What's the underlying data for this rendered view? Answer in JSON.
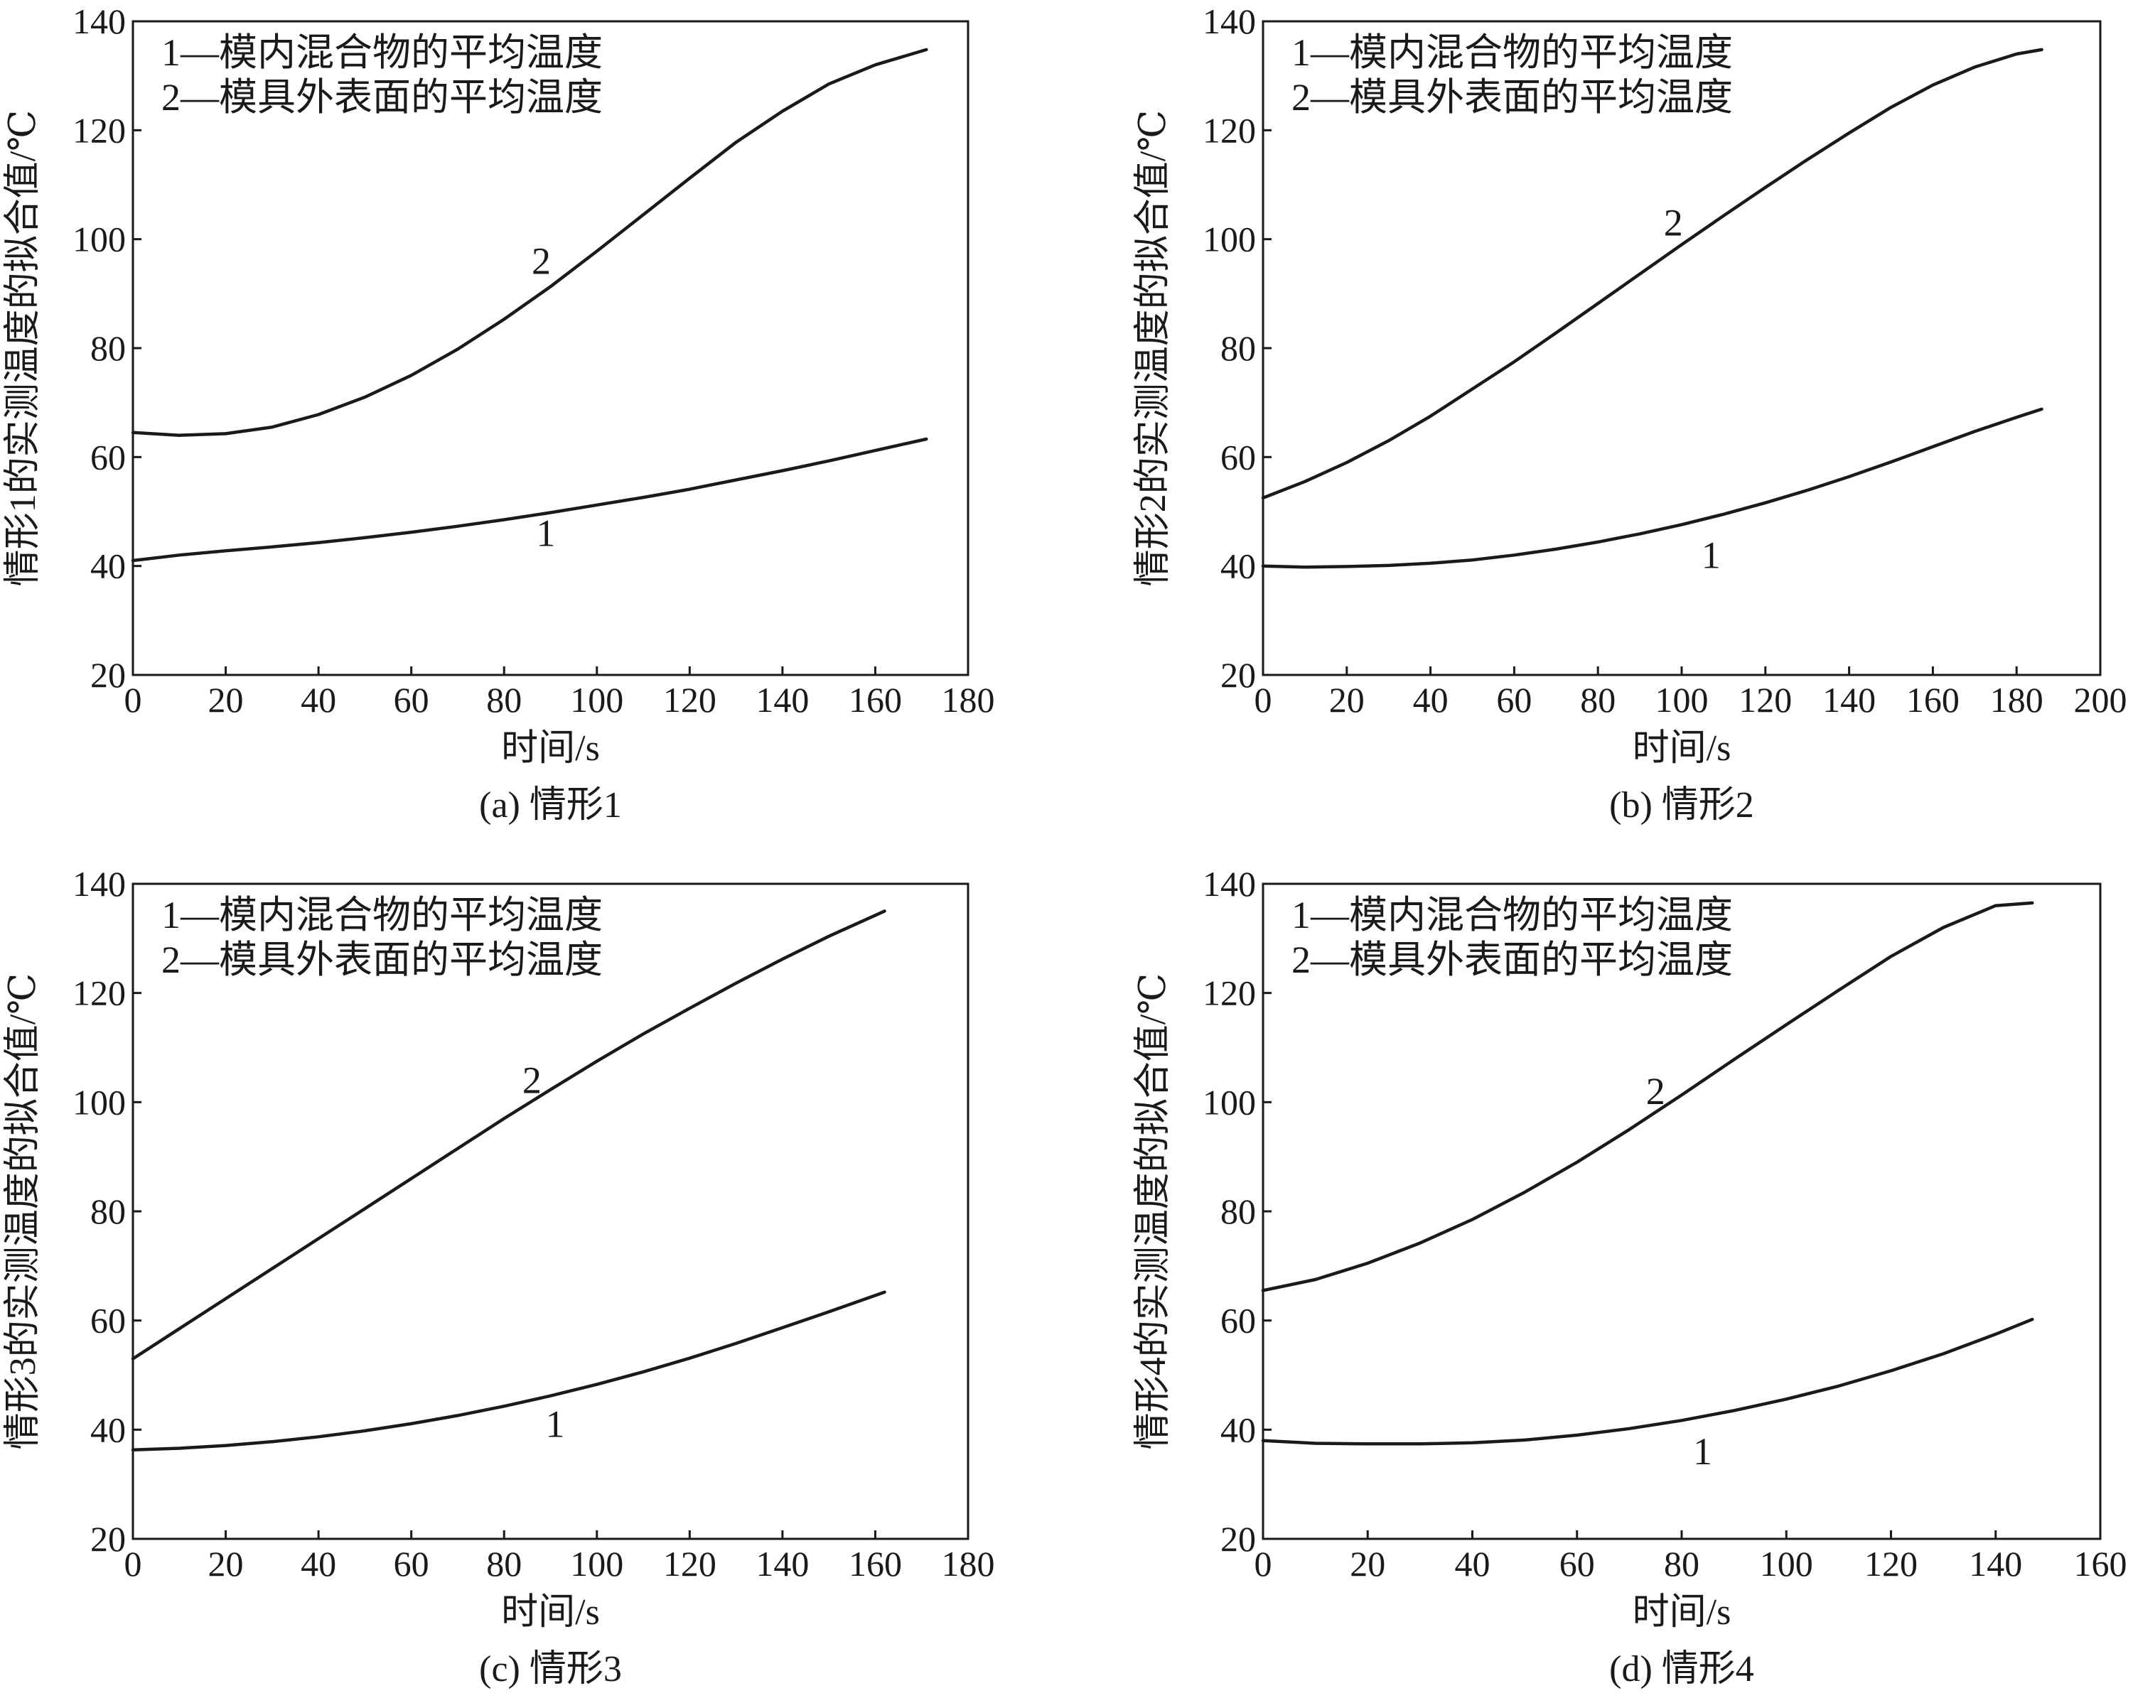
{
  "chart_data": [
    {
      "type": "line",
      "caption": "(a) 情形1",
      "xlabel": "时间/s",
      "ylabel": "情形1的实测温度的拟合值/℃",
      "xlim": [
        0,
        180
      ],
      "ylim": [
        20,
        140
      ],
      "xticks": [
        0,
        20,
        40,
        60,
        80,
        100,
        120,
        140,
        160,
        180
      ],
      "yticks": [
        20,
        40,
        60,
        80,
        100,
        120,
        140
      ],
      "legend": [
        "1—模内混合物的平均温度",
        "2—模具外表面的平均温度"
      ],
      "grid": false,
      "series": [
        {
          "name": "1",
          "label_at": [
            89,
            46
          ],
          "x": [
            0,
            10,
            20,
            30,
            40,
            50,
            60,
            70,
            80,
            90,
            100,
            110,
            120,
            130,
            140,
            150,
            160,
            171
          ],
          "values": [
            41,
            42,
            42.8,
            43.5,
            44.3,
            45.2,
            46.2,
            47.3,
            48.5,
            49.8,
            51.2,
            52.6,
            54.1,
            55.8,
            57.5,
            59.3,
            61.2,
            63.3
          ]
        },
        {
          "name": "2",
          "label_at": [
            88,
            96
          ],
          "x": [
            0,
            10,
            20,
            30,
            40,
            50,
            60,
            70,
            80,
            90,
            100,
            110,
            120,
            130,
            140,
            150,
            160,
            171
          ],
          "values": [
            64.5,
            64,
            64.3,
            65.5,
            67.8,
            71,
            75,
            79.8,
            85.3,
            91.3,
            97.8,
            104.5,
            111.2,
            117.8,
            123.5,
            128.5,
            132,
            134.8
          ]
        }
      ]
    },
    {
      "type": "line",
      "caption": "(b) 情形2",
      "xlabel": "时间/s",
      "ylabel": "情形2的实测温度的拟合值/℃",
      "xlim": [
        0,
        200
      ],
      "ylim": [
        20,
        140
      ],
      "xticks": [
        0,
        20,
        40,
        60,
        80,
        100,
        120,
        140,
        160,
        180,
        200
      ],
      "yticks": [
        20,
        40,
        60,
        80,
        100,
        120,
        140
      ],
      "legend": [
        "1—模内混合物的平均温度",
        "2—模具外表面的平均温度"
      ],
      "grid": false,
      "series": [
        {
          "name": "1",
          "label_at": [
            107,
            42
          ],
          "x": [
            0,
            10,
            20,
            30,
            40,
            50,
            60,
            70,
            80,
            90,
            100,
            110,
            120,
            130,
            140,
            150,
            160,
            170,
            180,
            186
          ],
          "values": [
            40,
            39.8,
            39.9,
            40.1,
            40.5,
            41.1,
            42,
            43.1,
            44.4,
            45.9,
            47.6,
            49.5,
            51.6,
            53.9,
            56.4,
            59.1,
            61.9,
            64.7,
            67.3,
            68.8
          ]
        },
        {
          "name": "2",
          "label_at": [
            98,
            103
          ],
          "x": [
            0,
            10,
            20,
            30,
            40,
            50,
            60,
            70,
            80,
            90,
            100,
            110,
            120,
            130,
            140,
            150,
            160,
            170,
            180,
            186
          ],
          "values": [
            52.5,
            55.5,
            59,
            63,
            67.5,
            72.5,
            77.5,
            82.8,
            88.2,
            93.6,
            99,
            104.3,
            109.5,
            114.6,
            119.5,
            124.2,
            128.3,
            131.6,
            134,
            134.8
          ]
        }
      ]
    },
    {
      "type": "line",
      "caption": "(c) 情形3",
      "xlabel": "时间/s",
      "ylabel": "情形3的实测温度的拟合值/℃",
      "xlim": [
        0,
        180
      ],
      "ylim": [
        20,
        140
      ],
      "xticks": [
        0,
        20,
        40,
        60,
        80,
        100,
        120,
        140,
        160,
        180
      ],
      "yticks": [
        20,
        40,
        60,
        80,
        100,
        120,
        140
      ],
      "legend": [
        "1—模内混合物的平均温度",
        "2—模具外表面的平均温度"
      ],
      "grid": false,
      "series": [
        {
          "name": "1",
          "label_at": [
            91,
            41
          ],
          "x": [
            0,
            10,
            20,
            30,
            40,
            50,
            60,
            70,
            80,
            90,
            100,
            110,
            120,
            130,
            140,
            150,
            162
          ],
          "values": [
            36.3,
            36.6,
            37.1,
            37.8,
            38.7,
            39.8,
            41.1,
            42.6,
            44.3,
            46.2,
            48.3,
            50.6,
            53.1,
            55.8,
            58.7,
            61.6,
            65.2
          ]
        },
        {
          "name": "2",
          "label_at": [
            86,
            104
          ],
          "x": [
            0,
            10,
            20,
            30,
            40,
            50,
            60,
            70,
            80,
            90,
            100,
            110,
            120,
            130,
            140,
            150,
            162
          ],
          "values": [
            53,
            58.5,
            64,
            69.5,
            75,
            80.5,
            86,
            91.5,
            97,
            102.3,
            107.5,
            112.5,
            117.2,
            121.8,
            126.2,
            130.4,
            135
          ]
        }
      ]
    },
    {
      "type": "line",
      "caption": "(d) 情形4",
      "xlabel": "时间/s",
      "ylabel": "情形4的实测温度的拟合值/℃",
      "xlim": [
        0,
        160
      ],
      "ylim": [
        20,
        140
      ],
      "xticks": [
        0,
        20,
        40,
        60,
        80,
        100,
        120,
        140,
        160
      ],
      "yticks": [
        20,
        40,
        60,
        80,
        100,
        120,
        140
      ],
      "legend": [
        "1—模内混合物的平均温度",
        "2—模具外表面的平均温度"
      ],
      "grid": false,
      "series": [
        {
          "name": "1",
          "label_at": [
            84,
            36
          ],
          "x": [
            0,
            10,
            20,
            30,
            40,
            50,
            60,
            70,
            80,
            90,
            100,
            110,
            120,
            130,
            140,
            147
          ],
          "values": [
            38,
            37.5,
            37.4,
            37.4,
            37.6,
            38.1,
            39,
            40.2,
            41.7,
            43.5,
            45.6,
            48,
            50.8,
            53.9,
            57.5,
            60.2
          ]
        },
        {
          "name": "2",
          "label_at": [
            75,
            102
          ],
          "x": [
            0,
            10,
            20,
            30,
            40,
            50,
            60,
            70,
            80,
            90,
            100,
            110,
            120,
            130,
            140,
            147
          ],
          "values": [
            65.5,
            67.5,
            70.5,
            74.2,
            78.5,
            83.5,
            89,
            95,
            101.3,
            107.8,
            114.2,
            120.5,
            126.7,
            132,
            136,
            136.5
          ]
        }
      ]
    }
  ]
}
